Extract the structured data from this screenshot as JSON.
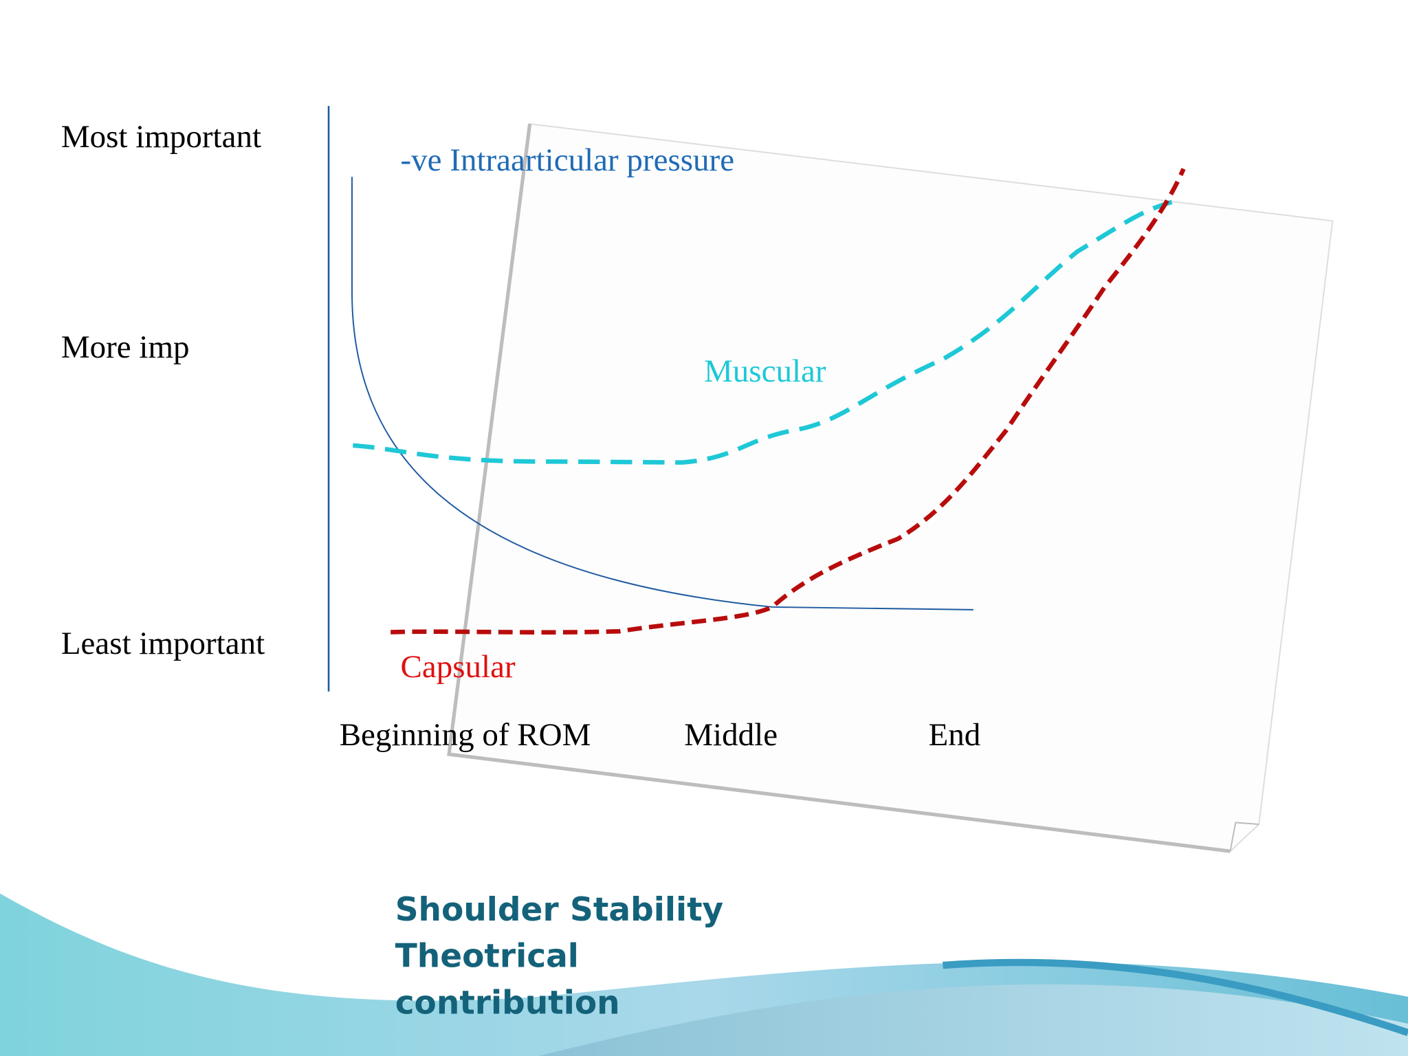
{
  "title": {
    "lines": [
      "Shoulder Stability",
      "Theotrical",
      "contribution"
    ]
  },
  "importance_labels": [
    "Most important",
    "More imp",
    "Least important"
  ],
  "range_labels": [
    "Beginning of ROM",
    "Middle",
    "End"
  ],
  "curve_labels": {
    "pressure": "-ve Intraarticular pressure",
    "muscular": "Muscular",
    "capsular": "Capsular"
  }
}
